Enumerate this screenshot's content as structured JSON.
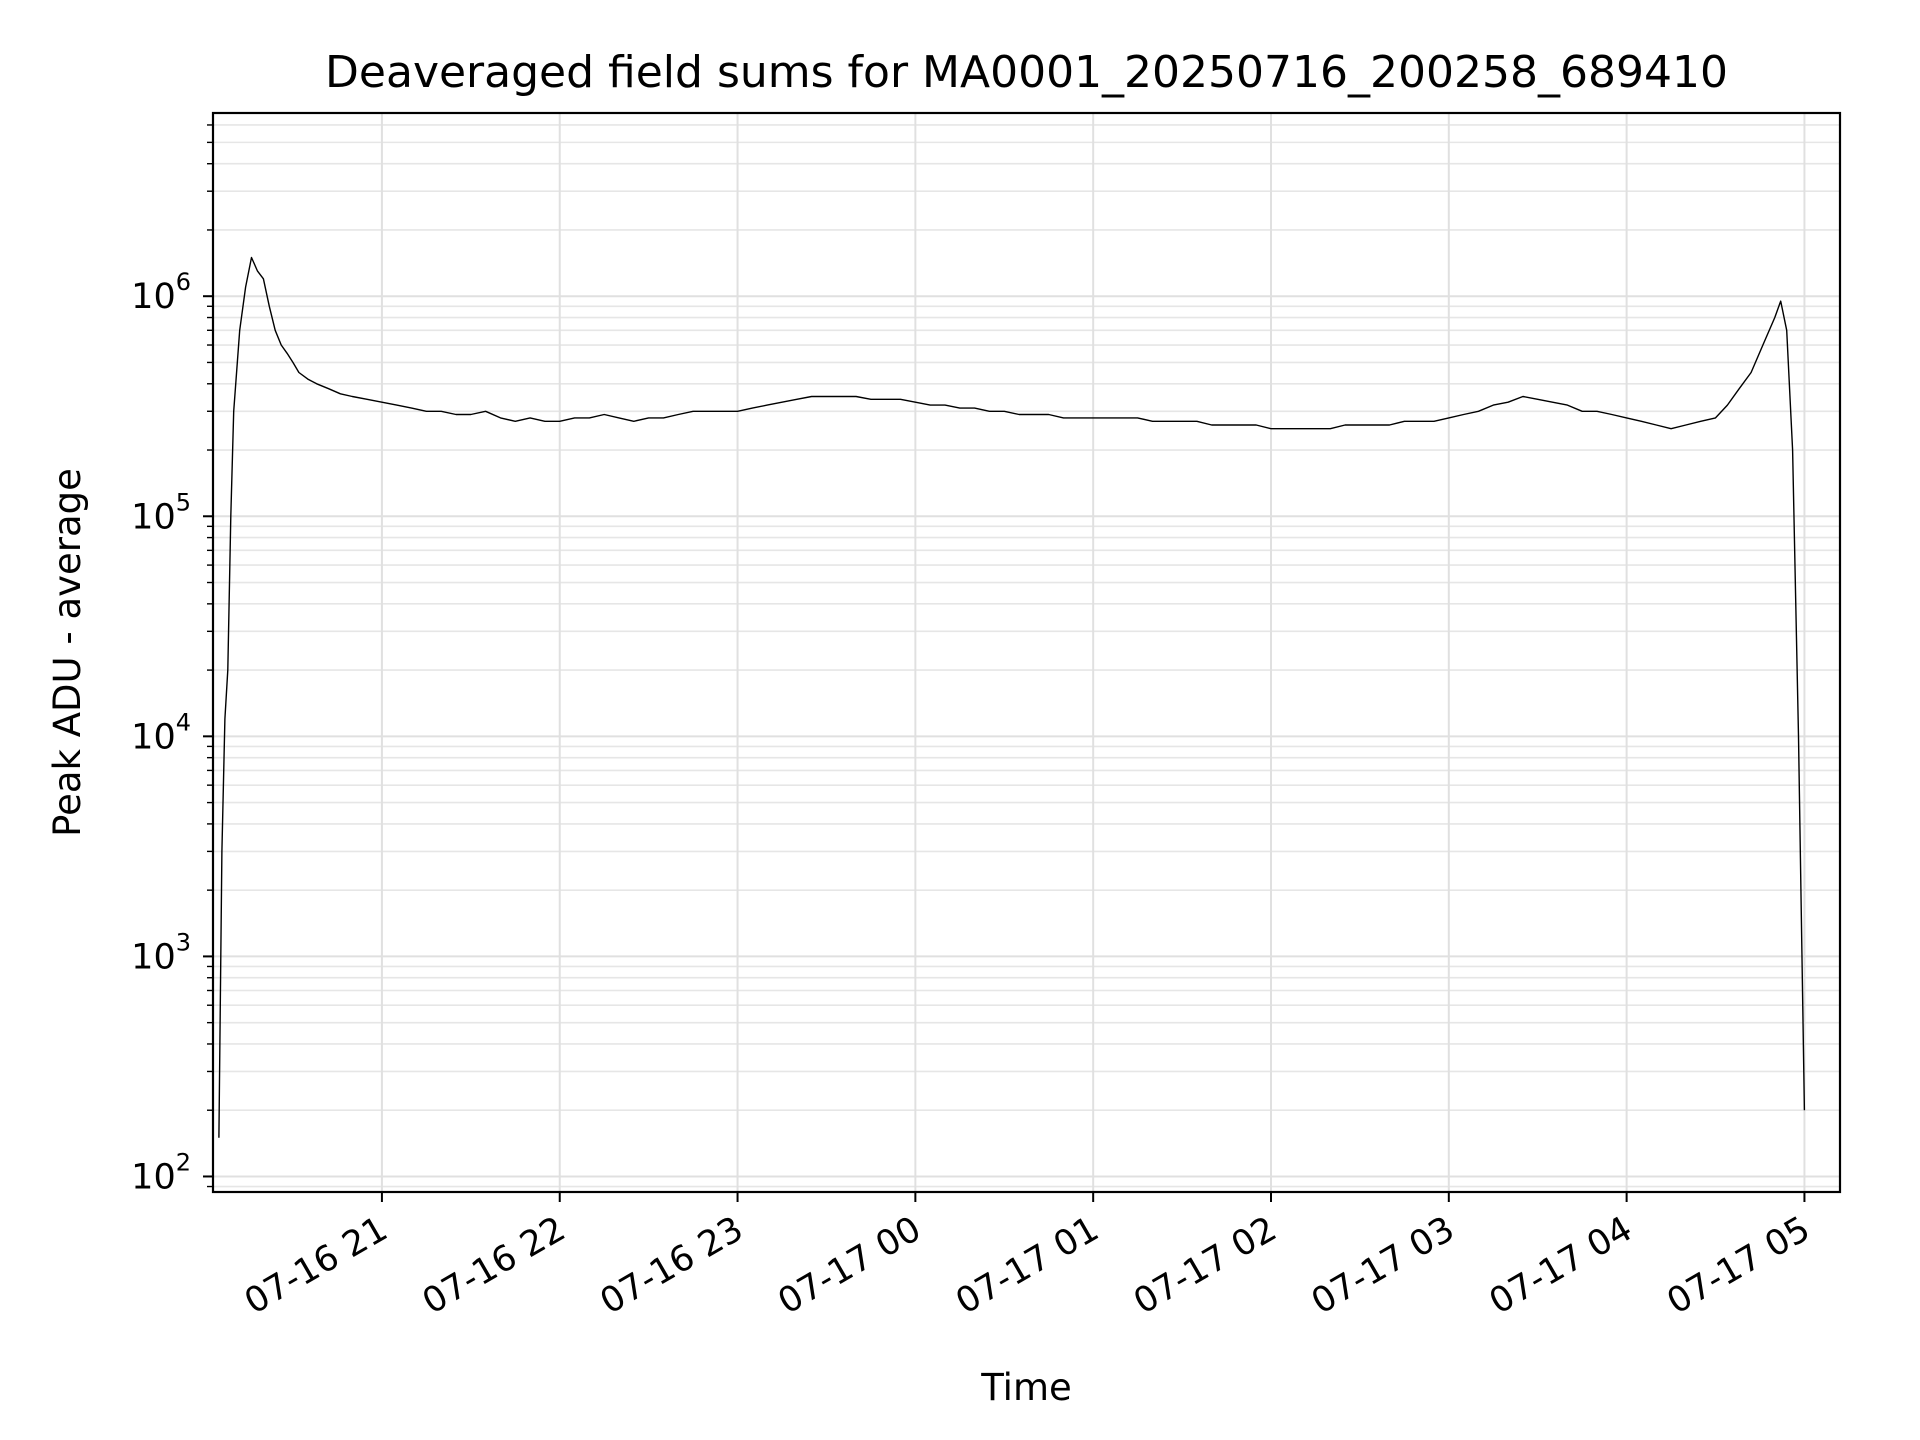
{
  "chart_data": {
    "type": "line",
    "title": "Deaveraged field sums for MA0001_20250716_200258_689410",
    "xlabel": "Time",
    "ylabel": "Peak ADU - average",
    "yscale": "log",
    "ylim": [
      85,
      6800000
    ],
    "xlim": [
      "07-16 20:03",
      "07-17 05:12"
    ],
    "grid": true,
    "x_ticks": [
      {
        "value": "07-16 21:00",
        "label": "07-16 21"
      },
      {
        "value": "07-16 22:00",
        "label": "07-16 22"
      },
      {
        "value": "07-16 23:00",
        "label": "07-16 23"
      },
      {
        "value": "07-17 00:00",
        "label": "07-17 00"
      },
      {
        "value": "07-17 01:00",
        "label": "07-17 01"
      },
      {
        "value": "07-17 02:00",
        "label": "07-17 02"
      },
      {
        "value": "07-17 03:00",
        "label": "07-17 03"
      },
      {
        "value": "07-17 04:00",
        "label": "07-17 04"
      },
      {
        "value": "07-17 05:00",
        "label": "07-17 05"
      }
    ],
    "y_ticks": [
      {
        "value": 100,
        "base": "10",
        "exp": "2"
      },
      {
        "value": 1000,
        "base": "10",
        "exp": "3"
      },
      {
        "value": 10000,
        "base": "10",
        "exp": "4"
      },
      {
        "value": 100000,
        "base": "10",
        "exp": "5"
      },
      {
        "value": 1000000,
        "base": "10",
        "exp": "6"
      }
    ],
    "color": "#000000",
    "series": [
      {
        "x": [
          "07-16 20:05",
          "07-16 20:06",
          "07-16 20:07",
          "07-16 20:08",
          "07-16 20:09",
          "07-16 20:10",
          "07-16 20:12",
          "07-16 20:14",
          "07-16 20:16",
          "07-16 20:18",
          "07-16 20:20",
          "07-16 20:22",
          "07-16 20:24",
          "07-16 20:26",
          "07-16 20:28",
          "07-16 20:30",
          "07-16 20:32",
          "07-16 20:35",
          "07-16 20:38",
          "07-16 20:42",
          "07-16 20:46",
          "07-16 20:50",
          "07-16 20:55",
          "07-16 21:00",
          "07-16 21:05",
          "07-16 21:10",
          "07-16 21:15",
          "07-16 21:20",
          "07-16 21:25",
          "07-16 21:30",
          "07-16 21:35",
          "07-16 21:40",
          "07-16 21:45",
          "07-16 21:50",
          "07-16 21:55",
          "07-16 22:00",
          "07-16 22:05",
          "07-16 22:10",
          "07-16 22:15",
          "07-16 22:20",
          "07-16 22:25",
          "07-16 22:30",
          "07-16 22:35",
          "07-16 22:40",
          "07-16 22:45",
          "07-16 22:50",
          "07-16 22:55",
          "07-16 23:00",
          "07-16 23:05",
          "07-16 23:10",
          "07-16 23:15",
          "07-16 23:20",
          "07-16 23:25",
          "07-16 23:30",
          "07-16 23:35",
          "07-16 23:40",
          "07-16 23:45",
          "07-16 23:50",
          "07-16 23:55",
          "07-17 00:00",
          "07-17 00:05",
          "07-17 00:10",
          "07-17 00:15",
          "07-17 00:20",
          "07-17 00:25",
          "07-17 00:30",
          "07-17 00:35",
          "07-17 00:40",
          "07-17 00:45",
          "07-17 00:50",
          "07-17 00:55",
          "07-17 01:00",
          "07-17 01:05",
          "07-17 01:10",
          "07-17 01:15",
          "07-17 01:20",
          "07-17 01:25",
          "07-17 01:30",
          "07-17 01:35",
          "07-17 01:40",
          "07-17 01:45",
          "07-17 01:50",
          "07-17 01:55",
          "07-17 02:00",
          "07-17 02:05",
          "07-17 02:10",
          "07-17 02:15",
          "07-17 02:20",
          "07-17 02:25",
          "07-17 02:30",
          "07-17 02:35",
          "07-17 02:40",
          "07-17 02:45",
          "07-17 02:50",
          "07-17 02:55",
          "07-17 03:00",
          "07-17 03:05",
          "07-17 03:10",
          "07-17 03:15",
          "07-17 03:20",
          "07-17 03:25",
          "07-17 03:30",
          "07-17 03:35",
          "07-17 03:40",
          "07-17 03:45",
          "07-17 03:50",
          "07-17 03:55",
          "07-17 04:00",
          "07-17 04:05",
          "07-17 04:10",
          "07-17 04:15",
          "07-17 04:20",
          "07-17 04:25",
          "07-17 04:30",
          "07-17 04:34",
          "07-17 04:38",
          "07-17 04:42",
          "07-17 04:46",
          "07-17 04:50",
          "07-17 04:52",
          "07-17 04:54",
          "07-17 04:56",
          "07-17 04:58",
          "07-17 05:00"
        ],
        "values": [
          150,
          3000,
          12000,
          20000,
          100000,
          300000,
          700000,
          1100000,
          1500000,
          1300000,
          1200000,
          900000,
          700000,
          600000,
          550000,
          500000,
          450000,
          420000,
          400000,
          380000,
          360000,
          350000,
          340000,
          330000,
          320000,
          310000,
          300000,
          300000,
          290000,
          290000,
          300000,
          280000,
          270000,
          280000,
          270000,
          270000,
          280000,
          280000,
          290000,
          280000,
          270000,
          280000,
          280000,
          290000,
          300000,
          300000,
          300000,
          300000,
          310000,
          320000,
          330000,
          340000,
          350000,
          350000,
          350000,
          350000,
          340000,
          340000,
          340000,
          330000,
          320000,
          320000,
          310000,
          310000,
          300000,
          300000,
          290000,
          290000,
          290000,
          280000,
          280000,
          280000,
          280000,
          280000,
          280000,
          270000,
          270000,
          270000,
          270000,
          260000,
          260000,
          260000,
          260000,
          250000,
          250000,
          250000,
          250000,
          250000,
          260000,
          260000,
          260000,
          260000,
          270000,
          270000,
          270000,
          280000,
          290000,
          300000,
          320000,
          330000,
          350000,
          340000,
          330000,
          320000,
          300000,
          300000,
          290000,
          280000,
          270000,
          260000,
          250000,
          260000,
          270000,
          280000,
          320000,
          380000,
          450000,
          600000,
          800000,
          950000,
          700000,
          200000,
          10000,
          200
        ]
      }
    ]
  }
}
